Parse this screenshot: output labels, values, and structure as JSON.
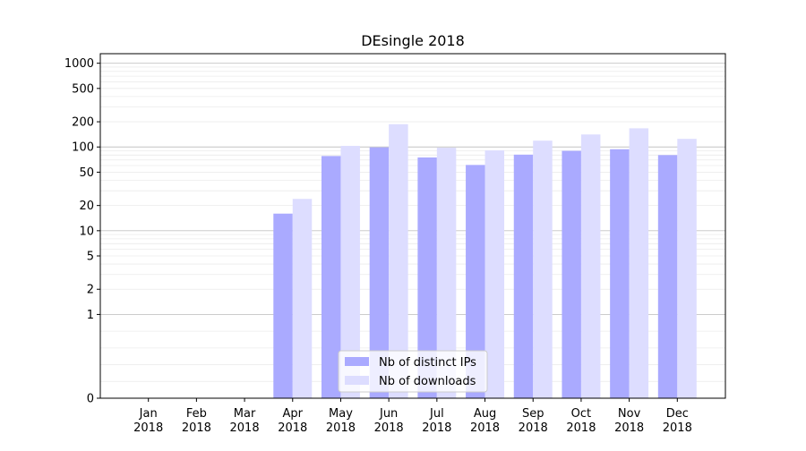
{
  "chart_data": {
    "type": "bar",
    "title": "DEsingle 2018",
    "xlabel": "",
    "ylabel": "",
    "yscale": "symlog",
    "ylim": [
      0,
      1300
    ],
    "y_ticks": [
      0,
      1,
      2,
      5,
      10,
      20,
      50,
      100,
      200,
      500,
      1000
    ],
    "y_tick_labels": [
      "0",
      "1",
      "2",
      "5",
      "10",
      "20",
      "50",
      "100",
      "200",
      "500",
      "1000"
    ],
    "grid": true,
    "legend_position": "bottom-center",
    "categories": [
      [
        "Jan",
        "2018"
      ],
      [
        "Feb",
        "2018"
      ],
      [
        "Mar",
        "2018"
      ],
      [
        "Apr",
        "2018"
      ],
      [
        "May",
        "2018"
      ],
      [
        "Jun",
        "2018"
      ],
      [
        "Jul",
        "2018"
      ],
      [
        "Aug",
        "2018"
      ],
      [
        "Sep",
        "2018"
      ],
      [
        "Oct",
        "2018"
      ],
      [
        "Nov",
        "2018"
      ],
      [
        "Dec",
        "2018"
      ]
    ],
    "series": [
      {
        "name": "Nb of distinct IPs",
        "color": "#aaaaff",
        "values": [
          0,
          0,
          0,
          16,
          78,
          99,
          75,
          61,
          81,
          90,
          94,
          80
        ]
      },
      {
        "name": "Nb of downloads",
        "color": "#ddddff",
        "values": [
          0,
          0,
          0,
          24,
          103,
          187,
          98,
          91,
          119,
          141,
          167,
          125
        ]
      }
    ]
  }
}
